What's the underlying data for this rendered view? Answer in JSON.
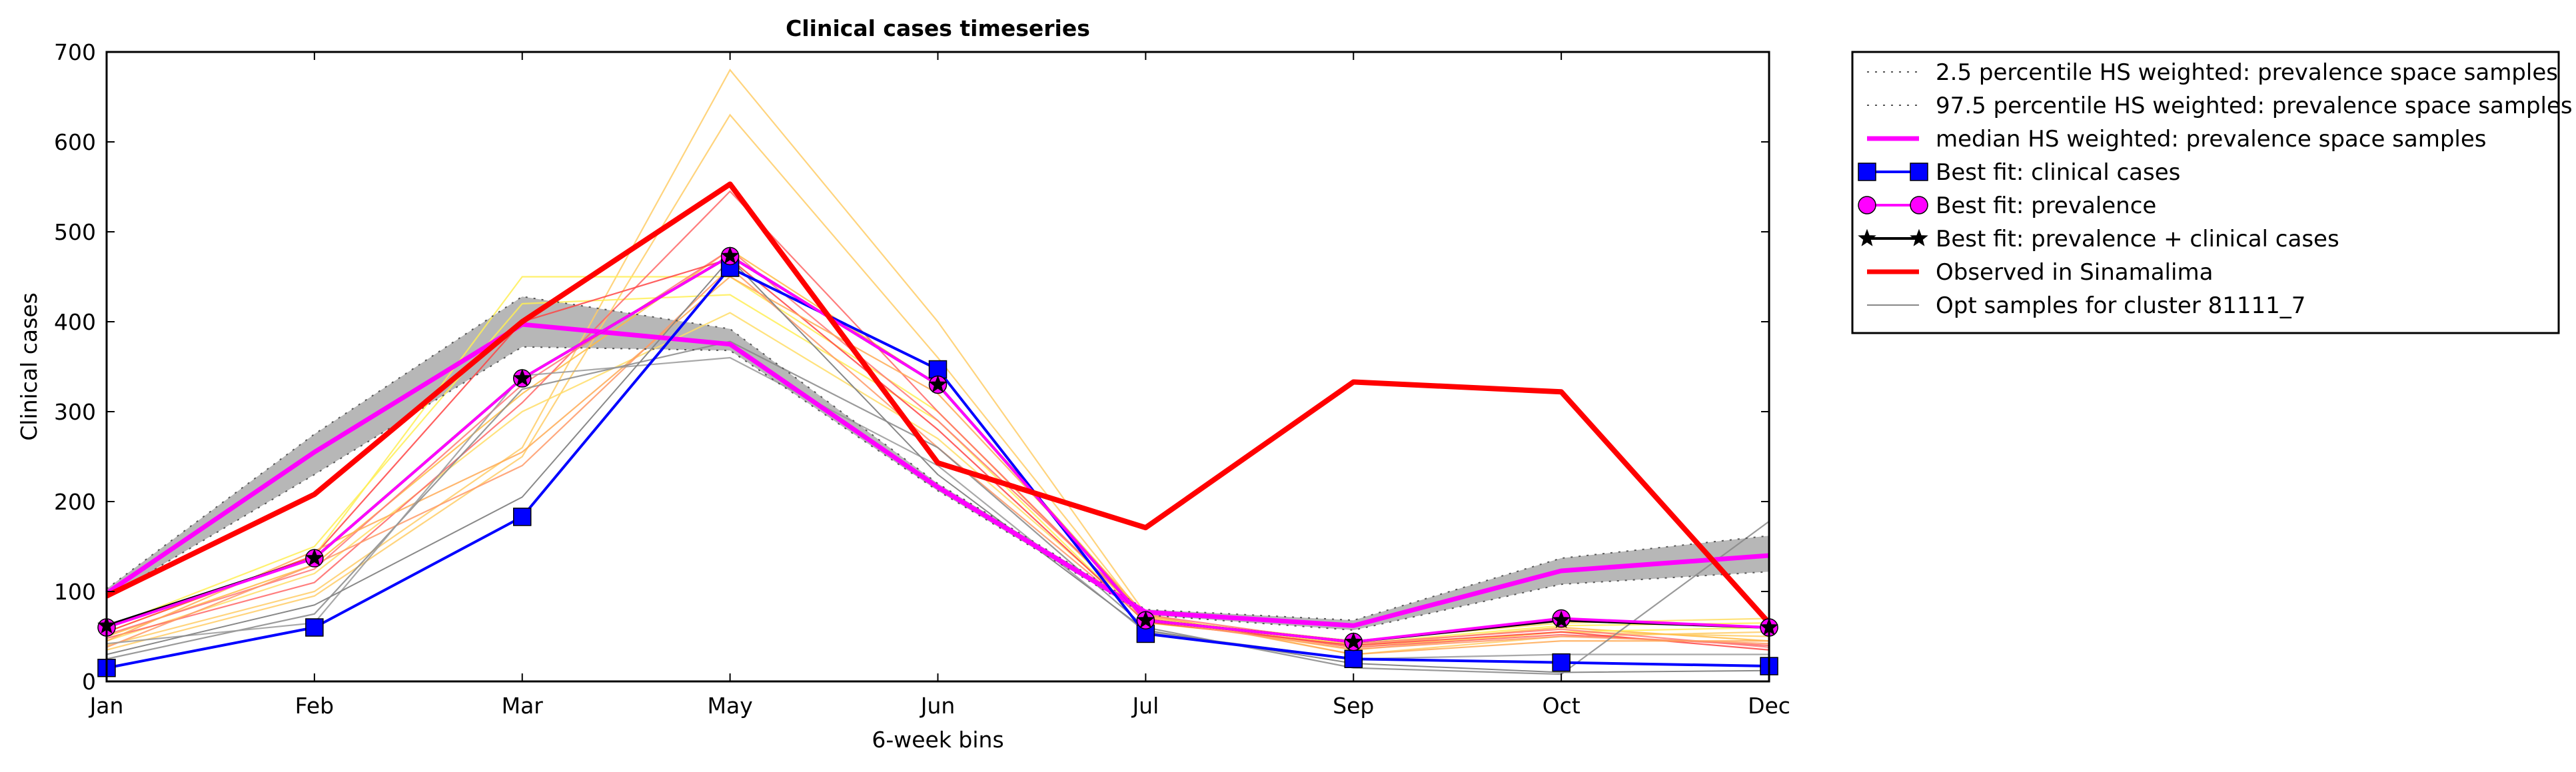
{
  "chart_data": {
    "type": "line",
    "title": "Clinical cases timeseries",
    "xlabel": "6-week bins",
    "ylabel": "Clinical cases",
    "categories": [
      "Jan",
      "Feb",
      "Mar",
      "May",
      "Jun",
      "Jul",
      "Sep",
      "Oct",
      "Dec"
    ],
    "yticks": [
      0,
      100,
      200,
      300,
      400,
      500,
      600,
      700
    ],
    "ylim": [
      0,
      700
    ],
    "grid": false,
    "legend_position": "outside-right",
    "band": {
      "lower": [
        93,
        230,
        372,
        368,
        212,
        74,
        57,
        108,
        122
      ],
      "upper": [
        103,
        275,
        428,
        392,
        220,
        80,
        68,
        137,
        162
      ],
      "color": "#aaaaaa"
    },
    "series": [
      {
        "name": "2.5 percentile HS weighted: prevalence space samples",
        "values": [
          93,
          230,
          372,
          368,
          212,
          74,
          57,
          108,
          122
        ],
        "color": "#555555",
        "style": "dotted",
        "marker": "none",
        "width": 2
      },
      {
        "name": "97.5 percentile HS weighted: prevalence space samples",
        "values": [
          103,
          275,
          428,
          392,
          220,
          80,
          68,
          137,
          162
        ],
        "color": "#555555",
        "style": "dotted",
        "marker": "none",
        "width": 2
      },
      {
        "name": "median HS weighted: prevalence space samples",
        "values": [
          98,
          255,
          397,
          375,
          216,
          77,
          62,
          123,
          140
        ],
        "color": "#ff00ff",
        "style": "solid",
        "marker": "none",
        "width": 7
      },
      {
        "name": "Best fit: clinical cases",
        "values": [
          15,
          60,
          183,
          460,
          347,
          53,
          25,
          21,
          17
        ],
        "color": "#0000ff",
        "style": "solid",
        "marker": "square",
        "width": 4
      },
      {
        "name": "Best fit: prevalence",
        "values": [
          60,
          137,
          337,
          473,
          330,
          68,
          44,
          70,
          60
        ],
        "color": "#ff00ff",
        "style": "solid",
        "marker": "circle",
        "width": 4
      },
      {
        "name": "Best fit: prevalence + clinical cases",
        "values": [
          62,
          137,
          337,
          473,
          330,
          68,
          44,
          68,
          60
        ],
        "color": "#000000",
        "style": "solid",
        "marker": "star",
        "width": 4
      },
      {
        "name": "Observed in Sinamalima",
        "values": [
          95,
          208,
          400,
          553,
          243,
          171,
          333,
          322,
          65
        ],
        "color": "#ff0000",
        "style": "solid",
        "marker": "none",
        "width": 8
      },
      {
        "name": "Opt samples for cluster 81111_7",
        "values": [
          30,
          85,
          205,
          470,
          230,
          57,
          20,
          10,
          12
        ],
        "color": "#888888",
        "style": "solid",
        "marker": "none",
        "width": 2
      }
    ],
    "sample_traces": [
      {
        "color": "#ffcc66",
        "values": [
          40,
          100,
          260,
          680,
          400,
          75,
          30,
          50,
          55
        ]
      },
      {
        "color": "#ffcc66",
        "values": [
          35,
          95,
          250,
          630,
          360,
          70,
          35,
          55,
          50
        ]
      },
      {
        "color": "#ffbb44",
        "values": [
          50,
          130,
          320,
          480,
          330,
          72,
          40,
          60,
          45
        ]
      },
      {
        "color": "#ffee55",
        "values": [
          55,
          140,
          450,
          450,
          300,
          68,
          38,
          55,
          60
        ]
      },
      {
        "color": "#ffee55",
        "values": [
          60,
          150,
          420,
          430,
          290,
          65,
          42,
          62,
          65
        ]
      },
      {
        "color": "#ffdd66",
        "values": [
          45,
          120,
          300,
          410,
          270,
          70,
          45,
          65,
          70
        ]
      },
      {
        "color": "#ff6666",
        "values": [
          48,
          110,
          310,
          545,
          300,
          70,
          38,
          52,
          40
        ]
      },
      {
        "color": "#ff7777",
        "values": [
          52,
          125,
          330,
          480,
          290,
          74,
          42,
          58,
          38
        ]
      },
      {
        "color": "#ff4444",
        "values": [
          55,
          140,
          400,
          470,
          280,
          66,
          40,
          55,
          35
        ]
      },
      {
        "color": "#ffaa55",
        "values": [
          45,
          145,
          255,
          450,
          320,
          74,
          30,
          45,
          45
        ]
      },
      {
        "color": "#ff9966",
        "values": [
          38,
          130,
          240,
          460,
          260,
          68,
          36,
          50,
          42
        ]
      },
      {
        "color": "#888888",
        "values": [
          25,
          75,
          325,
          378,
          260,
          60,
          15,
          8,
          178
        ]
      },
      {
        "color": "#999999",
        "values": [
          42,
          65,
          340,
          360,
          240,
          55,
          25,
          30,
          30
        ]
      }
    ]
  }
}
